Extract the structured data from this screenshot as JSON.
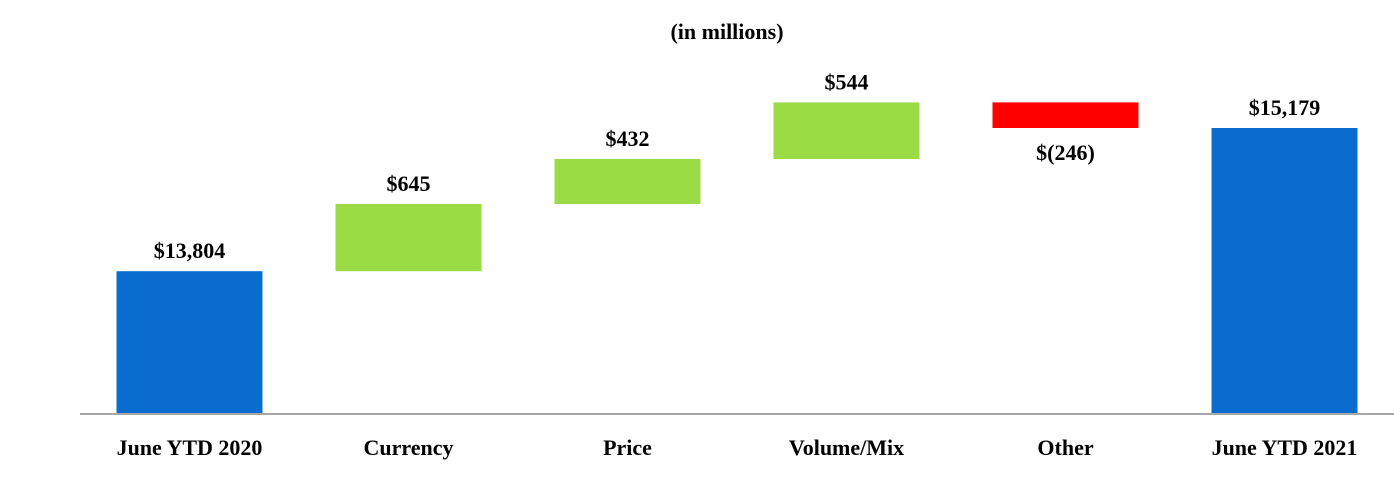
{
  "chart_data": {
    "type": "bar",
    "subtype": "waterfall",
    "title": "(in millions)",
    "xlabel": "",
    "ylabel": "",
    "grid": false,
    "categories": [
      "June YTD 2020",
      "Currency",
      "Price",
      "Volume/Mix",
      "Other",
      "June YTD 2021"
    ],
    "values": [
      13804,
      645,
      432,
      544,
      -246,
      15179
    ],
    "kinds": [
      "total",
      "delta",
      "delta",
      "delta",
      "delta",
      "total"
    ],
    "value_labels": [
      "$13,804",
      "$645",
      "$432",
      "$544",
      "$(246)",
      "$15,179"
    ],
    "ylim": [
      8000,
      16000
    ],
    "colors": {
      "total": "#0a6ccf",
      "increase": "#9bdb46",
      "decrease": "#ff0000",
      "axis": "#a6a6a6"
    }
  }
}
